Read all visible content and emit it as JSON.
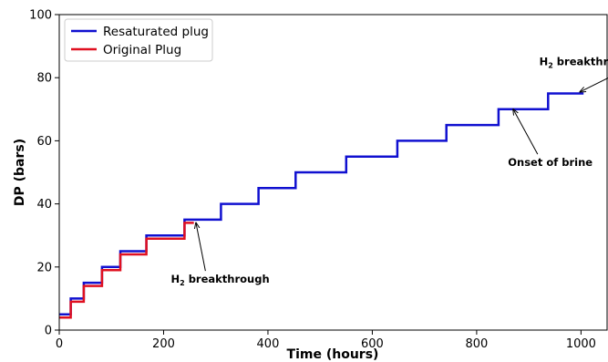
{
  "chart_data": {
    "type": "line",
    "title": "",
    "xlabel": "Time (hours)",
    "ylabel": "DP (bars)",
    "xlim": [
      0,
      1050
    ],
    "ylim": [
      0,
      100
    ],
    "xticks": [
      0,
      200,
      400,
      600,
      800,
      1000
    ],
    "yticks": [
      0,
      20,
      40,
      60,
      80,
      100
    ],
    "grid": false,
    "legend_position": "top-left",
    "series": [
      {
        "name": "Resaturated plug",
        "color": "#1010d0",
        "step": true,
        "x": [
          0,
          22,
          22,
          47,
          47,
          82,
          82,
          117,
          117,
          167,
          167,
          240,
          240,
          310,
          310,
          382,
          382,
          453,
          453,
          550,
          550,
          648,
          648,
          742,
          742,
          842,
          842,
          937,
          937,
          1005
        ],
        "y": [
          5,
          5,
          10,
          10,
          15,
          15,
          20,
          20,
          25,
          25,
          30,
          30,
          35,
          35,
          40,
          40,
          45,
          45,
          50,
          50,
          55,
          55,
          60,
          60,
          65,
          65,
          70,
          70,
          75,
          75
        ]
      },
      {
        "name": "Original Plug",
        "color": "#e01020",
        "step": true,
        "x": [
          0,
          22,
          22,
          47,
          47,
          82,
          82,
          117,
          117,
          167,
          167,
          240,
          240,
          258
        ],
        "y": [
          4,
          4,
          9,
          9,
          14,
          14,
          19,
          19,
          24,
          24,
          29,
          29,
          34,
          34
        ]
      }
    ],
    "annotations": [
      {
        "label": "H",
        "subscript": "2",
        "suffix": " breakthrough",
        "text_at": [
          214,
          15
        ],
        "arrow_to": [
          262,
          34
        ]
      },
      {
        "label": "Onset of brine",
        "subscript": "",
        "suffix": "",
        "text_at": [
          860,
          52
        ],
        "arrow_to": [
          870,
          70
        ]
      },
      {
        "label": "H",
        "subscript": "2",
        "suffix": " breakthrough",
        "text_at": [
          920,
          84
        ],
        "arrow_to": [
          998,
          75.5
        ]
      }
    ]
  }
}
